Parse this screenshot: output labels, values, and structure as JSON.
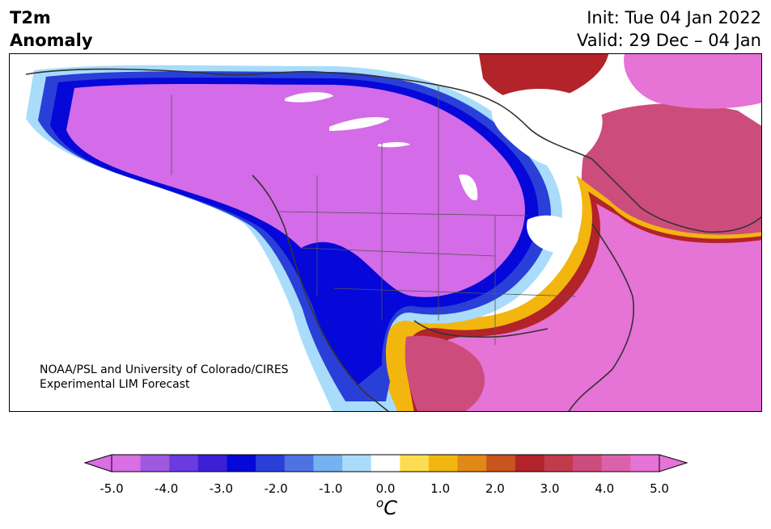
{
  "title": {
    "line1": "T2m",
    "line2": "Anomaly",
    "init": "Init: Tue 04 Jan 2022",
    "valid": "Valid: 29 Dec – 04 Jan"
  },
  "credit": {
    "line1": "NOAA/PSL and University of Colorado/CIRES",
    "line2": "Experimental LIM Forecast"
  },
  "colorbar": {
    "unit_prefix": "o",
    "unit_main": "C",
    "ticks": [
      "-5.0",
      "-4.0",
      "-3.0",
      "-2.0",
      "-1.0",
      "0.0",
      "1.0",
      "2.0",
      "3.0",
      "4.0",
      "5.0"
    ],
    "levels": [
      -5.0,
      -4.5,
      -4.0,
      -3.5,
      -3.0,
      -2.5,
      -2.0,
      -1.5,
      -1.0,
      -0.5,
      0.5,
      1.0,
      1.5,
      2.0,
      2.5,
      3.0,
      3.5,
      4.0,
      4.5,
      5.0
    ],
    "colors": [
      "#d96ee6",
      "#9f58e0",
      "#6b3ae0",
      "#3b1fd6",
      "#0508d8",
      "#2a3fd8",
      "#4f72e3",
      "#76b1f2",
      "#a8dcfa",
      "#ffffff",
      "#fddd4f",
      "#f2b60f",
      "#e08916",
      "#c9541c",
      "#b3232a",
      "#c13b4d",
      "#cc4d7c",
      "#db62aa",
      "#e673d6"
    ],
    "under_color": "#d96ee6",
    "over_color": "#e673d6"
  },
  "map_regions": {
    "cold_core": "#d46be8",
    "cold_ring": "#0508d8",
    "warm_east": "#cc4d7c",
    "warm_south": "#e673d6",
    "warm_canada_ne": "#c94c7a"
  }
}
